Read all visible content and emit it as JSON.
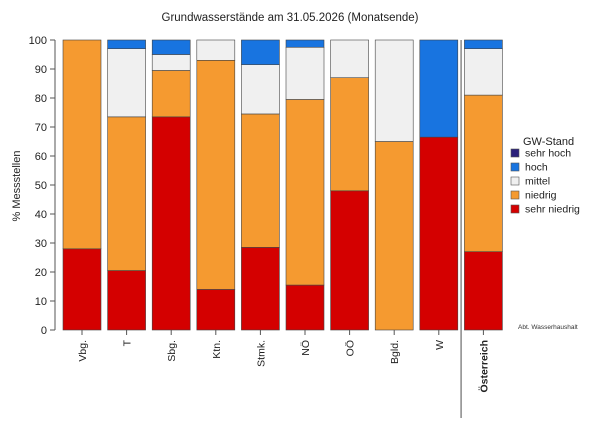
{
  "chart_data": {
    "type": "bar",
    "stacked": true,
    "title": "Grundwasserstände am 31.05.2026 (Monatsende)",
    "ylabel": "% Messstellen",
    "xlabel": "",
    "ylim": [
      0,
      100
    ],
    "yticks": [
      0,
      10,
      20,
      30,
      40,
      50,
      60,
      70,
      80,
      90,
      100
    ],
    "categories": [
      "Vbg.",
      "T",
      "Sbg.",
      "Ktn.",
      "Stmk.",
      "NÖ",
      "OÖ",
      "Bgld.",
      "W",
      "Österreich"
    ],
    "summary_category": "Österreich",
    "legend_title": "GW-Stand",
    "legend_position": "right",
    "grid": false,
    "series": [
      {
        "name": "sehr niedrig",
        "color": "#d40000",
        "values": [
          28,
          20.5,
          73.5,
          14,
          28.5,
          15.5,
          48,
          0,
          66.5,
          27
        ]
      },
      {
        "name": "niedrig",
        "color": "#f59a30",
        "values": [
          72,
          53,
          16,
          79,
          46,
          64,
          39,
          65,
          0,
          54
        ]
      },
      {
        "name": "mittel",
        "color": "#f0f0f0",
        "values": [
          0,
          23.5,
          5.5,
          7,
          17,
          18,
          13,
          35,
          0,
          16
        ]
      },
      {
        "name": "hoch",
        "color": "#1874e0",
        "values": [
          0,
          3,
          5,
          0,
          8.5,
          2.5,
          0,
          0,
          33.5,
          3
        ]
      },
      {
        "name": "sehr hoch",
        "color": "#2a1f7a",
        "values": [
          0,
          0,
          0,
          0,
          0,
          0,
          0,
          0,
          0,
          0
        ]
      }
    ],
    "source_note": "Abt. Wasserhaushalt"
  }
}
